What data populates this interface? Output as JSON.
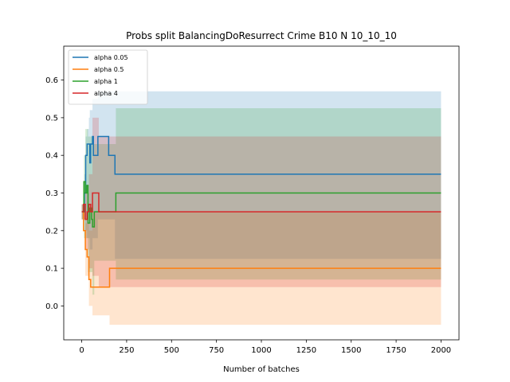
{
  "chart_data": {
    "type": "line",
    "title": "Probs split BalancingDoResurrect Crime B10 N 10_10_10",
    "xlabel": "Number of batches",
    "ylabel": "",
    "xlim": [
      -100,
      2100
    ],
    "ylim": [
      -0.09,
      0.69
    ],
    "x_ticks": [
      0,
      250,
      500,
      750,
      1000,
      1250,
      1500,
      1750,
      2000
    ],
    "y_ticks": [
      0.0,
      0.1,
      0.2,
      0.3,
      0.4,
      0.5,
      0.6
    ],
    "grid": false,
    "legend_position": "top-left",
    "series": [
      {
        "name": "alpha 0.05",
        "color": "#1f77b4",
        "points": [
          [
            0,
            0.25
          ],
          [
            15,
            0.3
          ],
          [
            22,
            0.4
          ],
          [
            30,
            0.43
          ],
          [
            40,
            0.43
          ],
          [
            45,
            0.38
          ],
          [
            50,
            0.43
          ],
          [
            60,
            0.45
          ],
          [
            65,
            0.4
          ],
          [
            90,
            0.4
          ],
          [
            90,
            0.45
          ],
          [
            150,
            0.45
          ],
          [
            150,
            0.4
          ],
          [
            180,
            0.4
          ],
          [
            185,
            0.35
          ],
          [
            2000,
            0.35
          ]
        ],
        "band_upper": [
          [
            0,
            0.27
          ],
          [
            15,
            0.35
          ],
          [
            22,
            0.45
          ],
          [
            30,
            0.47
          ],
          [
            40,
            0.5
          ],
          [
            45,
            0.52
          ],
          [
            60,
            0.55
          ],
          [
            90,
            0.57
          ],
          [
            2000,
            0.575
          ]
        ],
        "band_lower": [
          [
            0,
            0.23
          ],
          [
            15,
            0.2
          ],
          [
            30,
            0.18
          ],
          [
            45,
            0.15
          ],
          [
            60,
            0.18
          ],
          [
            90,
            0.23
          ],
          [
            150,
            0.23
          ],
          [
            185,
            0.125
          ],
          [
            2000,
            0.125
          ]
        ]
      },
      {
        "name": "alpha 0.5",
        "color": "#ff7f0e",
        "points": [
          [
            0,
            0.25
          ],
          [
            10,
            0.2
          ],
          [
            20,
            0.15
          ],
          [
            30,
            0.13
          ],
          [
            40,
            0.07
          ],
          [
            50,
            0.05
          ],
          [
            60,
            0.05
          ],
          [
            150,
            0.05
          ],
          [
            155,
            0.1
          ],
          [
            2000,
            0.1
          ]
        ],
        "band_upper": [
          [
            0,
            0.27
          ],
          [
            20,
            0.22
          ],
          [
            40,
            0.2
          ],
          [
            60,
            0.25
          ],
          [
            150,
            0.25
          ],
          [
            155,
            0.25
          ],
          [
            2000,
            0.25
          ]
        ],
        "band_lower": [
          [
            0,
            0.23
          ],
          [
            20,
            0.08
          ],
          [
            40,
            0.0
          ],
          [
            60,
            -0.025
          ],
          [
            150,
            -0.025
          ],
          [
            155,
            -0.05
          ],
          [
            2000,
            -0.05
          ]
        ]
      },
      {
        "name": "alpha 1",
        "color": "#2ca02c",
        "points": [
          [
            0,
            0.25
          ],
          [
            12,
            0.33
          ],
          [
            20,
            0.3
          ],
          [
            28,
            0.32
          ],
          [
            35,
            0.22
          ],
          [
            45,
            0.26
          ],
          [
            55,
            0.23
          ],
          [
            60,
            0.21
          ],
          [
            70,
            0.25
          ],
          [
            185,
            0.25
          ],
          [
            190,
            0.3
          ],
          [
            2000,
            0.3
          ]
        ],
        "band_upper": [
          [
            0,
            0.27
          ],
          [
            12,
            0.4
          ],
          [
            20,
            0.47
          ],
          [
            35,
            0.45
          ],
          [
            60,
            0.43
          ],
          [
            185,
            0.43
          ],
          [
            190,
            0.525
          ],
          [
            2000,
            0.525
          ]
        ],
        "band_lower": [
          [
            0,
            0.23
          ],
          [
            12,
            0.18
          ],
          [
            35,
            0.09
          ],
          [
            60,
            0.03
          ],
          [
            70,
            0.12
          ],
          [
            185,
            0.12
          ],
          [
            190,
            0.07
          ],
          [
            2000,
            0.07
          ]
        ]
      },
      {
        "name": "alpha 4",
        "color": "#d62728",
        "points": [
          [
            0,
            0.25
          ],
          [
            10,
            0.27
          ],
          [
            20,
            0.23
          ],
          [
            30,
            0.25
          ],
          [
            40,
            0.27
          ],
          [
            50,
            0.25
          ],
          [
            60,
            0.3
          ],
          [
            90,
            0.3
          ],
          [
            95,
            0.25
          ],
          [
            2000,
            0.25
          ]
        ],
        "band_upper": [
          [
            0,
            0.27
          ],
          [
            20,
            0.3
          ],
          [
            40,
            0.35
          ],
          [
            60,
            0.5
          ],
          [
            90,
            0.5
          ],
          [
            95,
            0.45
          ],
          [
            2000,
            0.45
          ]
        ],
        "band_lower": [
          [
            0,
            0.23
          ],
          [
            20,
            0.15
          ],
          [
            40,
            0.1
          ],
          [
            60,
            0.08
          ],
          [
            90,
            0.08
          ],
          [
            95,
            0.05
          ],
          [
            2000,
            0.05
          ]
        ]
      }
    ]
  }
}
